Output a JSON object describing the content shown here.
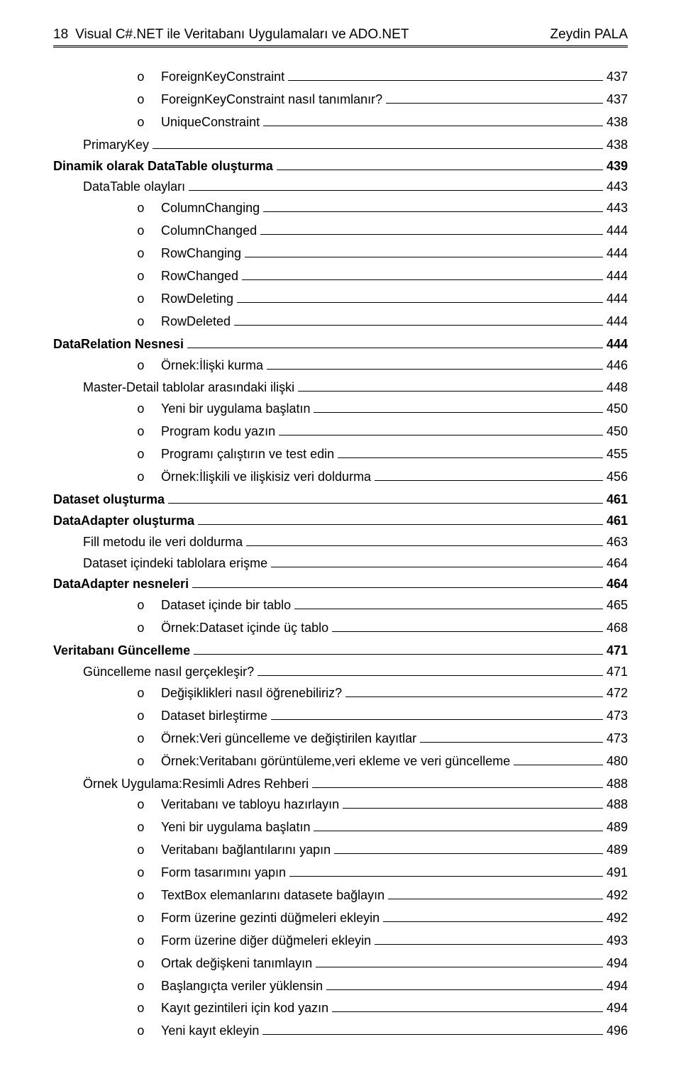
{
  "header": {
    "page_number": "18",
    "title": "Visual C#.NET ile Veritabanı Uygulamaları ve ADO.NET",
    "author": "Zeydin PALA"
  },
  "bullet_marker": "o",
  "entries": [
    {
      "level": "o",
      "label": "ForeignKeyConstraint",
      "page": "437"
    },
    {
      "level": "o",
      "label": "ForeignKeyConstraint nasıl tanımlanır?",
      "page": "437"
    },
    {
      "level": "o",
      "label": "UniqueConstraint",
      "page": "438"
    },
    {
      "level": "l2",
      "label": "PrimaryKey",
      "page": "438"
    },
    {
      "level": "l1b",
      "label": "Dinamik olarak DataTable oluşturma",
      "page": "439"
    },
    {
      "level": "l2",
      "label": "DataTable olayları",
      "page": "443"
    },
    {
      "level": "o",
      "label": "ColumnChanging",
      "page": "443"
    },
    {
      "level": "o",
      "label": "ColumnChanged",
      "page": "444"
    },
    {
      "level": "o",
      "label": "RowChanging",
      "page": "444"
    },
    {
      "level": "o",
      "label": "RowChanged",
      "page": "444"
    },
    {
      "level": "o",
      "label": "RowDeleting",
      "page": "444"
    },
    {
      "level": "o",
      "label": "RowDeleted",
      "page": "444"
    },
    {
      "level": "l1b",
      "label": "DataRelation Nesnesi",
      "page": "444"
    },
    {
      "level": "o",
      "label": "Örnek:İlişki kurma",
      "page": "446"
    },
    {
      "level": "l2",
      "label": "Master-Detail tablolar arasındaki ilişki",
      "page": "448"
    },
    {
      "level": "o",
      "label": "Yeni bir uygulama başlatın",
      "page": "450"
    },
    {
      "level": "o",
      "label": "Program kodu yazın",
      "page": "450"
    },
    {
      "level": "o",
      "label": "Programı çalıştırın ve test edin",
      "page": "455"
    },
    {
      "level": "o",
      "label": "Örnek:İlişkili ve ilişkisiz veri doldurma",
      "page": "456"
    },
    {
      "level": "l1b",
      "label": "Dataset oluşturma",
      "page": "461"
    },
    {
      "level": "l1b",
      "label": "DataAdapter oluşturma",
      "page": "461"
    },
    {
      "level": "l2",
      "label": "Fill metodu ile veri doldurma",
      "page": "463"
    },
    {
      "level": "l2",
      "label": "Dataset içindeki tablolara erişme",
      "page": "464"
    },
    {
      "level": "l1b",
      "label": "DataAdapter nesneleri",
      "page": "464"
    },
    {
      "level": "o",
      "label": "Dataset içinde bir tablo",
      "page": "465"
    },
    {
      "level": "o",
      "label": "Örnek:Dataset içinde üç tablo",
      "page": "468"
    },
    {
      "level": "l1b",
      "label": "Veritabanı Güncelleme",
      "page": "471"
    },
    {
      "level": "l2",
      "label": "Güncelleme nasıl gerçekleşir?",
      "page": "471"
    },
    {
      "level": "o",
      "label": "Değişiklikleri nasıl öğrenebiliriz?",
      "page": "472"
    },
    {
      "level": "o",
      "label": "Dataset birleştirme",
      "page": "473"
    },
    {
      "level": "o",
      "label": "Örnek:Veri güncelleme ve değiştirilen kayıtlar",
      "page": "473"
    },
    {
      "level": "o",
      "label": "Örnek:Veritabanı görüntüleme,veri ekleme ve veri güncelleme",
      "page": "480"
    },
    {
      "level": "l2",
      "label": "Örnek Uygulama:Resimli Adres Rehberi",
      "page": "488"
    },
    {
      "level": "o",
      "label": "Veritabanı ve tabloyu hazırlayın",
      "page": "488"
    },
    {
      "level": "o",
      "label": "Yeni bir uygulama başlatın",
      "page": "489"
    },
    {
      "level": "o",
      "label": "Veritabanı bağlantılarını yapın",
      "page": "489"
    },
    {
      "level": "o",
      "label": "Form tasarımını yapın",
      "page": "491"
    },
    {
      "level": "o",
      "label": "TextBox elemanlarını datasete bağlayın",
      "page": "492"
    },
    {
      "level": "o",
      "label": "Form üzerine gezinti düğmeleri ekleyin",
      "page": "492"
    },
    {
      "level": "o",
      "label": "Form üzerine diğer düğmeleri ekleyin",
      "page": "493"
    },
    {
      "level": "o",
      "label": "Ortak değişkeni tanımlayın",
      "page": "494"
    },
    {
      "level": "o",
      "label": "Başlangıçta veriler yüklensin",
      "page": "494"
    },
    {
      "level": "o",
      "label": "Kayıt gezintileri için kod yazın",
      "page": "494"
    },
    {
      "level": "o",
      "label": "Yeni kayıt ekleyin",
      "page": "496"
    }
  ]
}
